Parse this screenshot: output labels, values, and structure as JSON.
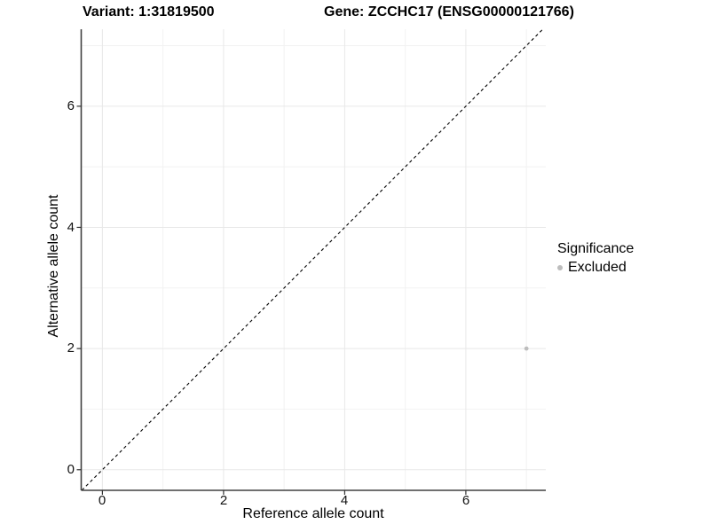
{
  "chart_data": {
    "type": "scatter",
    "title_variant": "Variant: 1:31819500",
    "title_gene": "Gene: ZCCHC17 (ENSG00000121766)",
    "xlabel": "Reference allele count",
    "ylabel": "Alternative allele count",
    "xlim": [
      -0.35,
      7.32
    ],
    "ylim": [
      -0.34,
      7.27
    ],
    "xticks": [
      0,
      2,
      4,
      6
    ],
    "yticks": [
      0,
      2,
      4,
      6
    ],
    "xtick_labels": [
      "0",
      "2",
      "4",
      "6"
    ],
    "ytick_labels": [
      "0",
      "2",
      "4",
      "6"
    ],
    "x_grid_major": [
      0,
      2,
      4,
      6
    ],
    "x_grid_minor": [
      1,
      3,
      5,
      7
    ],
    "y_grid_major": [
      0,
      2,
      4,
      6
    ],
    "y_grid_minor": [
      1,
      3,
      5,
      7
    ],
    "grid": true,
    "points": [
      {
        "x": 7,
        "y": 2,
        "series": "Excluded"
      }
    ],
    "identity_line": {
      "equation": "y = x",
      "style": "dashed"
    },
    "legend": {
      "title": "Significance",
      "position": "right",
      "items": [
        {
          "label": "Excluded",
          "color": "#bdbdbd"
        }
      ]
    },
    "colors": {
      "point": "#bdbdbd",
      "grid_major": "#e8e8e8",
      "grid_minor": "#f2f2f2",
      "axis": "#404040",
      "tick": "#333333",
      "dashed_line": "#000000"
    }
  }
}
